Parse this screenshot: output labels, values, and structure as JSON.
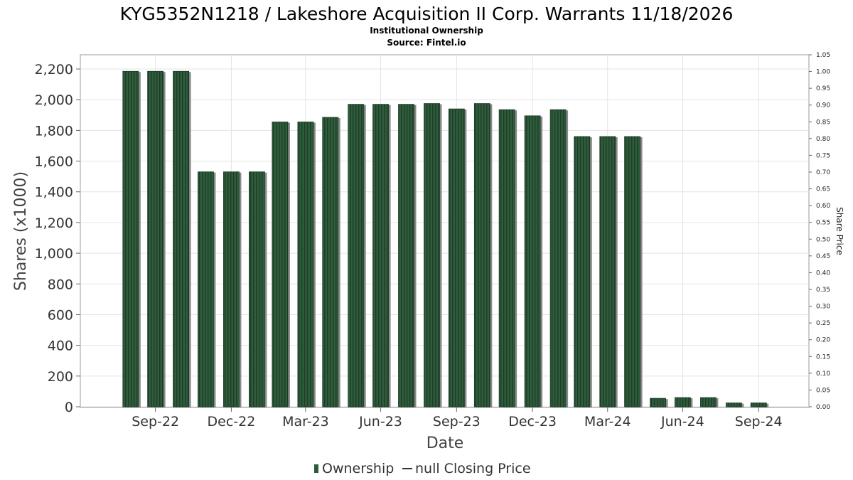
{
  "chart_data": {
    "type": "bar",
    "title": "KYG5352N1218 / Lakeshore Acquisition II Corp. Warrants 11/18/2026",
    "subtitle": "Institutional Ownership",
    "source": "Source: Fintel.io",
    "xlabel": "Date",
    "ylabel": "Shares (x1000)",
    "y2label": "Share Price",
    "ylim": [
      0,
      2300
    ],
    "y2lim": [
      0,
      1.05
    ],
    "yticks": [
      "0",
      "200",
      "400",
      "600",
      "800",
      "1,000",
      "1,200",
      "1,400",
      "1,600",
      "1,800",
      "2,000",
      "2,200"
    ],
    "y2ticks": [
      "0.00",
      "0.05",
      "0.10",
      "0.15",
      "0.20",
      "0.25",
      "0.30",
      "0.35",
      "0.40",
      "0.45",
      "0.50",
      "0.55",
      "0.60",
      "0.65",
      "0.70",
      "0.75",
      "0.80",
      "0.85",
      "0.90",
      "0.95",
      "1.00",
      "1.05"
    ],
    "xtick_labels": [
      {
        "label": "Sep-22",
        "x": "2022-09-30"
      },
      {
        "label": "Dec-22",
        "x": "2022-12-31"
      },
      {
        "label": "Mar-23",
        "x": "2023-03-31"
      },
      {
        "label": "Jun-23",
        "x": "2023-06-30"
      },
      {
        "label": "Sep-23",
        "x": "2023-09-30"
      },
      {
        "label": "Dec-23",
        "x": "2023-12-31"
      },
      {
        "label": "Mar-24",
        "x": "2024-03-31"
      },
      {
        "label": "Jun-24",
        "x": "2024-06-30"
      },
      {
        "label": "Sep-24",
        "x": "2024-09-30"
      }
    ],
    "x_range": [
      "2022-07-01",
      "2024-11-30"
    ],
    "grid": true,
    "legend_position": "bottom",
    "series": [
      {
        "name": "Ownership",
        "color": "#2d5a3a",
        "points": [
          {
            "x": "2022-08-31",
            "y": 2185
          },
          {
            "x": "2022-09-30",
            "y": 2185
          },
          {
            "x": "2022-10-31",
            "y": 2185
          },
          {
            "x": "2022-11-30",
            "y": 1530
          },
          {
            "x": "2022-12-31",
            "y": 1530
          },
          {
            "x": "2023-01-31",
            "y": 1530
          },
          {
            "x": "2023-02-28",
            "y": 1855
          },
          {
            "x": "2023-03-31",
            "y": 1855
          },
          {
            "x": "2023-04-30",
            "y": 1885
          },
          {
            "x": "2023-05-31",
            "y": 1970
          },
          {
            "x": "2023-06-30",
            "y": 1970
          },
          {
            "x": "2023-07-31",
            "y": 1970
          },
          {
            "x": "2023-08-31",
            "y": 1975
          },
          {
            "x": "2023-09-30",
            "y": 1940
          },
          {
            "x": "2023-10-31",
            "y": 1975
          },
          {
            "x": "2023-11-30",
            "y": 1935
          },
          {
            "x": "2023-12-31",
            "y": 1895
          },
          {
            "x": "2024-01-31",
            "y": 1935
          },
          {
            "x": "2024-02-29",
            "y": 1760
          },
          {
            "x": "2024-03-31",
            "y": 1760
          },
          {
            "x": "2024-04-30",
            "y": 1760
          },
          {
            "x": "2024-05-31",
            "y": 55
          },
          {
            "x": "2024-06-30",
            "y": 60
          },
          {
            "x": "2024-07-31",
            "y": 60
          },
          {
            "x": "2024-08-31",
            "y": 25
          },
          {
            "x": "2024-09-30",
            "y": 25
          }
        ]
      },
      {
        "name": "null Closing Price",
        "color": "#333333",
        "points": []
      }
    ]
  }
}
